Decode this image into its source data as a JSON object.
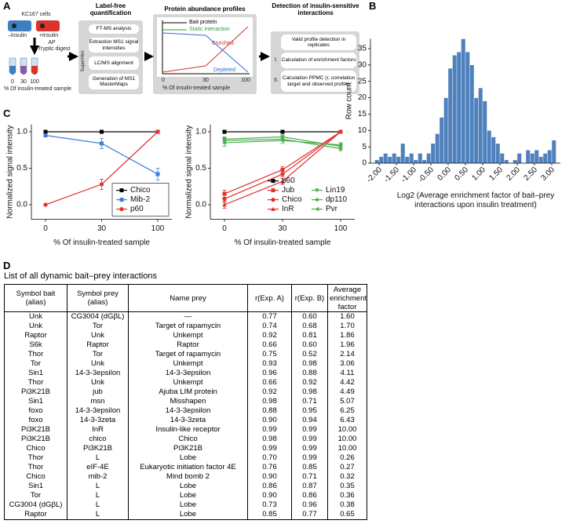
{
  "panel_labels": [
    "A",
    "B",
    "C",
    "D"
  ],
  "workflow": {
    "cells_label": "KC167 cells",
    "minus": "–Insulin",
    "plus": "+Insulin",
    "ap": "AP",
    "digest": "Tryptic digest",
    "tubes": [
      "0",
      "30",
      "100"
    ],
    "sample_axis": "% Of insulin-treated sample",
    "quant": {
      "title": "Label-free quantification",
      "tool": "SuperHirn",
      "steps": [
        "FT-MS analysis",
        "Extraction MS1 signal intensities",
        "LC/MS alignment",
        "Generation of MS1 MasterMaps"
      ]
    },
    "profiles": {
      "title": "Protein abundance profiles",
      "labels": [
        "Bait protein",
        "Static interaction",
        "Enriched",
        "Depleted"
      ],
      "ticks": [
        "0",
        "30",
        "100"
      ],
      "axis": "% Of insulin-treated sample"
    },
    "detection": {
      "title": "Detection of insulin-sensitive interactions",
      "markers": [
        "I.",
        "II."
      ],
      "steps": [
        "Valid profile detection in replicates",
        "Calculation of enrichment factors",
        "Calculation PPMC (r, correlation target and observed profile)"
      ]
    }
  },
  "chart_data": [
    {
      "type": "histogram",
      "ylabel": "Row count",
      "xlabel": "Log2 (Average enrichment factor of bait–prey interactions upon insulin treatment)",
      "color": "#4f81bd",
      "bins": [
        -2.125,
        -2,
        -1.875,
        -1.75,
        -1.625,
        -1.5,
        -1.375,
        -1.25,
        -1.125,
        -1,
        -0.875,
        -0.75,
        -0.625,
        -0.5,
        -0.375,
        -0.25,
        -0.125,
        0,
        0.125,
        0.25,
        0.375,
        0.5,
        0.625,
        0.75,
        0.875,
        1,
        1.125,
        1.25,
        1.375,
        1.5,
        1.625,
        1.75,
        1.875,
        2,
        2.125,
        2.25,
        2.375,
        2.5,
        2.625,
        2.75,
        2.875,
        3,
        3.125
      ],
      "values": [
        1,
        2,
        3,
        2,
        3,
        2,
        6,
        2,
        3,
        1,
        3,
        1,
        3,
        6,
        9,
        14,
        20,
        29,
        33,
        34,
        38,
        34,
        30,
        20,
        23,
        19,
        10,
        8,
        6,
        3,
        1,
        0,
        1,
        3,
        0,
        4,
        3,
        4,
        2,
        3,
        4,
        7
      ],
      "xlim": [
        -2.25,
        3.25
      ],
      "ylim": [
        0,
        38
      ],
      "xticks": [
        {
          "value": -2,
          "label": "-2.00"
        },
        {
          "value": -1.5,
          "label": "-1.50"
        },
        {
          "value": -1,
          "label": "-1.00"
        },
        {
          "value": -0.5,
          "label": "-0.50"
        },
        {
          "value": 0,
          "label": "0.00"
        },
        {
          "value": 0.5,
          "label": "0.50"
        },
        {
          "value": 1,
          "label": "1.00"
        },
        {
          "value": 1.5,
          "label": "1.50"
        },
        {
          "value": 2,
          "label": "2.00"
        },
        {
          "value": 2.5,
          "label": "2.50"
        },
        {
          "value": 3,
          "label": "3.00"
        }
      ],
      "yticks": [
        0,
        5,
        10,
        15,
        20,
        25,
        30,
        35
      ]
    },
    {
      "type": "line",
      "xlabel": "% Of insulin-treated sample",
      "ylabel": "Normalized signal intensity",
      "categories": [
        "0",
        "30",
        "100"
      ],
      "ylim": [
        -0.2,
        1.1
      ],
      "yticks": [
        {
          "value": 0,
          "label": "0.0"
        },
        {
          "value": 0.5,
          "label": "0.5"
        },
        {
          "value": 1,
          "label": "1.0"
        }
      ],
      "legend": "lower right",
      "legend_ncol": 1,
      "legend_frame": true,
      "series": [
        {
          "name": "Chico",
          "color": "#000000",
          "marker": "square",
          "values": [
            1,
            1,
            1
          ],
          "errors": [
            0.01,
            0.01,
            0.01
          ]
        },
        {
          "name": "Mib-2",
          "color": "#3b7dd8",
          "marker": "square",
          "values": [
            0.95,
            0.84,
            0.42
          ],
          "errors": [
            0.02,
            0.07,
            0.08
          ]
        },
        {
          "name": "p60",
          "color": "#e0322f",
          "marker": "circle",
          "values": [
            0,
            0.28,
            1
          ],
          "errors": [
            0,
            0.07,
            0.02
          ]
        }
      ]
    },
    {
      "type": "line",
      "xlabel": "% Of insulin-treated sample",
      "ylabel": "Normalized signal intensity",
      "categories": [
        "0",
        "30",
        "100"
      ],
      "ylim": [
        -0.2,
        1.1
      ],
      "yticks": [
        {
          "value": 0,
          "label": "0.0"
        },
        {
          "value": 0.5,
          "label": "0.5"
        },
        {
          "value": 1,
          "label": "1.0"
        }
      ],
      "legend": "lower right",
      "legend_ncol": 2,
      "legend_frame": false,
      "series": [
        {
          "name": "p60",
          "color": "#000000",
          "marker": "square",
          "values": [
            1,
            1,
            1
          ],
          "errors": [
            0.01,
            0.01,
            0.01
          ]
        },
        {
          "name": "Jub",
          "color": "#e0322f",
          "marker": "square",
          "values": [
            0.15,
            0.48,
            1
          ],
          "errors": [
            0.05,
            0.04,
            0.01
          ]
        },
        {
          "name": "Chico",
          "color": "#e0322f",
          "marker": "circle",
          "values": [
            0.08,
            0.42,
            1
          ],
          "errors": [
            0.05,
            0.04,
            0.01
          ]
        },
        {
          "name": "InR",
          "color": "#e0322f",
          "marker": "triangle",
          "values": [
            0,
            0.32,
            1
          ],
          "errors": [
            0.05,
            0.04,
            0.01
          ]
        },
        {
          "name": "Lin19",
          "color": "#4cae4c",
          "marker": "triangle-down",
          "values": [
            0.9,
            0.93,
            0.8
          ],
          "errors": [
            0.03,
            0.03,
            0.04
          ]
        },
        {
          "name": "dp110",
          "color": "#4cae4c",
          "marker": "diamond",
          "values": [
            0.88,
            0.9,
            0.77
          ],
          "errors": [
            0.04,
            0.02,
            0.03
          ]
        },
        {
          "name": "Pvr",
          "color": "#4cae4c",
          "marker": "triangle-left",
          "values": [
            0.85,
            0.88,
            0.82
          ],
          "errors": [
            0.05,
            0.04,
            0.03
          ]
        }
      ]
    }
  ],
  "table": {
    "title": "List of all dynamic bait–prey interactions",
    "header": [
      "Symbol bait (alias)",
      "Symbol prey (alias)",
      "Name prey",
      "r(Exp. A)",
      "r(Exp. B)",
      "Average enrichment factor"
    ],
    "rows": [
      [
        "Unk",
        "CG3004 (dGβL)",
        "—",
        "0.77",
        "0.60",
        "1.60"
      ],
      [
        "Unk",
        "Tor",
        "Target of rapamycin",
        "0.74",
        "0.68",
        "1.70"
      ],
      [
        "Raptor",
        "Unk",
        "Unkempt",
        "0.92",
        "0.81",
        "1.86"
      ],
      [
        "S6k",
        "Raptor",
        "Raptor",
        "0.66",
        "0.60",
        "1.96"
      ],
      [
        "Thor",
        "Tor",
        "Target of rapamycin",
        "0.75",
        "0.52",
        "2.14"
      ],
      [
        "Tor",
        "Unk",
        "Unkempt",
        "0.93",
        "0.98",
        "3.06"
      ],
      [
        "Sin1",
        "14-3-3epsilon",
        "14-3-3epsilon",
        "0.96",
        "0.88",
        "4.11"
      ],
      [
        "Thor",
        "Unk",
        "Unkempt",
        "0.66",
        "0.92",
        "4.42"
      ],
      [
        "Pi3K21B",
        "jub",
        "Ajuba LIM protein",
        "0.92",
        "0.98",
        "4.49"
      ],
      [
        "Sin1",
        "msn",
        "Misshapen",
        "0.98",
        "0.71",
        "5.07"
      ],
      [
        "foxo",
        "14-3-3epsilon",
        "14-3-3epsilon",
        "0.88",
        "0.95",
        "6.25"
      ],
      [
        "foxo",
        "14-3-3zeta",
        "14-3-3zeta",
        "0.90",
        "0.94",
        "6.43"
      ],
      [
        "Pi3K21B",
        "InR",
        "Insulin-like receptor",
        "0.99",
        "0.99",
        "10.00"
      ],
      [
        "Pi3K21B",
        "chico",
        "Chico",
        "0.98",
        "0.99",
        "10.00"
      ],
      [
        "Chico",
        "Pi3K21B",
        "Pi3K21B",
        "0.99",
        "0.99",
        "10.00"
      ],
      [
        "Thor",
        "L",
        "Lobe",
        "0.70",
        "0.99",
        "0.26"
      ],
      [
        "Thor",
        "eIF-4E",
        "Eukaryotic initiation factor 4E",
        "0.76",
        "0.85",
        "0.27"
      ],
      [
        "Chico",
        "mib-2",
        "Mind bomb 2",
        "0.90",
        "0.71",
        "0.32"
      ],
      [
        "Sin1",
        "L",
        "Lobe",
        "0.86",
        "0.87",
        "0.35"
      ],
      [
        "Tor",
        "L",
        "Lobe",
        "0.90",
        "0.86",
        "0.36"
      ],
      [
        "CG3004 (dGβL)",
        "L",
        "Lobe",
        "0.73",
        "0.96",
        "0.38"
      ],
      [
        "Raptor",
        "L",
        "Lobe",
        "0.85",
        "0.77",
        "0.65"
      ]
    ]
  }
}
